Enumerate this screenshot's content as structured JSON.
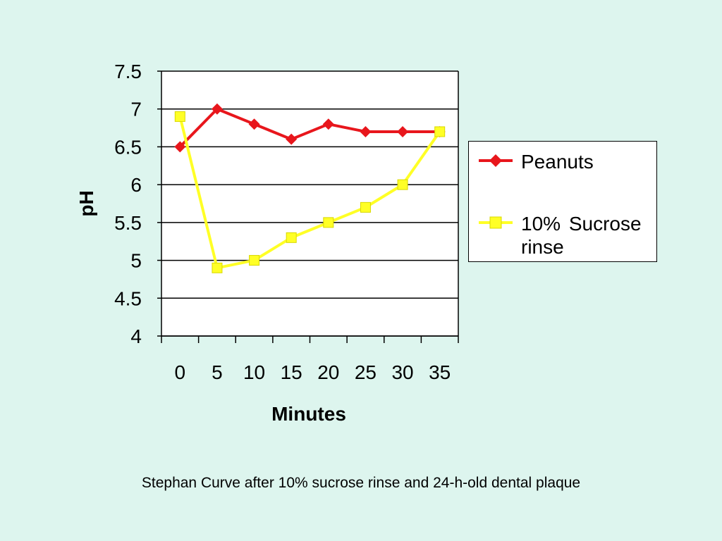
{
  "chart_data": {
    "type": "line",
    "xlabel": "Minutes",
    "ylabel": "pH",
    "categories": [
      "0",
      "5",
      "10",
      "15",
      "20",
      "25",
      "30",
      "35"
    ],
    "ylim": [
      4,
      7.5
    ],
    "yticks": [
      "4",
      "4.5",
      "5",
      "5.5",
      "6",
      "6.5",
      "7",
      "7.5"
    ],
    "grid": true,
    "legend_position": "right",
    "series": [
      {
        "name": "Peanuts",
        "color": "#e8161c",
        "marker": "diamond",
        "values": [
          6.5,
          7.0,
          6.8,
          6.6,
          6.8,
          6.7,
          6.7,
          6.7
        ]
      },
      {
        "name": "10% Sucrose rinse",
        "color": "#ffff26",
        "marker": "square",
        "values": [
          6.9,
          4.9,
          5.0,
          5.3,
          5.5,
          5.7,
          6.0,
          6.7
        ]
      }
    ]
  },
  "caption": "Stephan Curve after 10% sucrose rinse and 24-h-old dental plaque"
}
